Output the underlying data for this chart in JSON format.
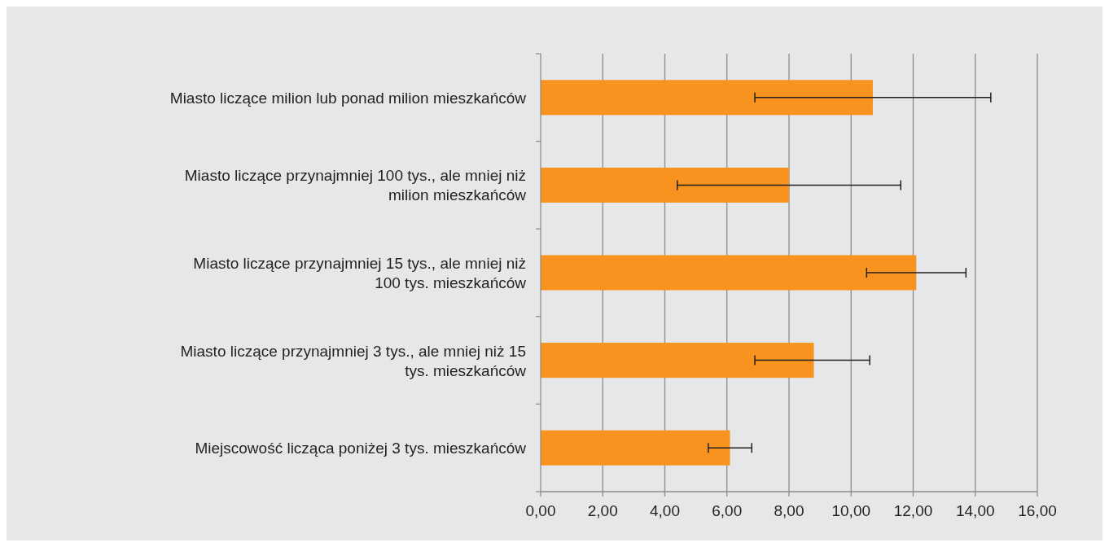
{
  "chart_data": {
    "type": "bar",
    "orientation": "horizontal",
    "categories": [
      "Miasto liczące milion lub ponad milion mieszkańców",
      "Miasto liczące przynajmniej 100 tys., ale mniej niż milion mieszkańców",
      "Miasto liczące przynajmniej 15 tys., ale mniej niż 100 tys. mieszkańców",
      "Miasto liczące przynajmniej 3 tys., ale mniej niż 15 tys. mieszkańców",
      "Miejscowość licząca poniżej 3 tys. mieszkańców"
    ],
    "values": [
      10.7,
      8.0,
      12.1,
      8.8,
      6.1
    ],
    "errors": [
      [
        6.9,
        14.5
      ],
      [
        4.4,
        11.6
      ],
      [
        10.5,
        13.7
      ],
      [
        6.9,
        10.6
      ],
      [
        5.4,
        6.8
      ]
    ],
    "color": "#f7931e",
    "xlim": [
      0,
      16
    ],
    "xticks": [
      {
        "value": 0,
        "label": "0,00"
      },
      {
        "value": 2,
        "label": "2,00"
      },
      {
        "value": 4,
        "label": "4,00"
      },
      {
        "value": 6,
        "label": "6,00"
      },
      {
        "value": 8,
        "label": "8,00"
      },
      {
        "value": 10,
        "label": "10,00"
      },
      {
        "value": 12,
        "label": "12,00"
      },
      {
        "value": 14,
        "label": "14,00"
      },
      {
        "value": 16,
        "label": "16,00"
      }
    ],
    "grid": "x"
  }
}
